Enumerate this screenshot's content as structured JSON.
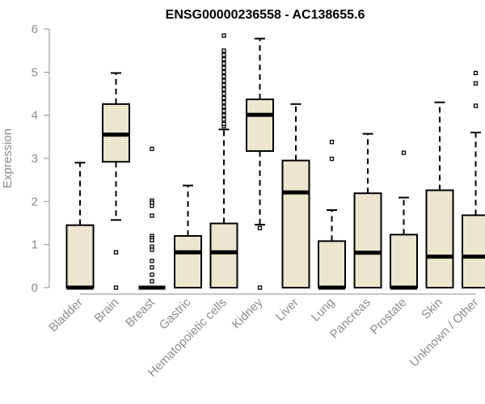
{
  "chart_data": {
    "type": "boxplot",
    "title": "ENSG00000236558 - AC138655.6",
    "xlabel": "",
    "ylabel": "Expression",
    "ylim": [
      0,
      6
    ],
    "yticks": [
      "0",
      "1",
      "2",
      "3",
      "4",
      "5",
      "6"
    ],
    "grid": false,
    "colors": {
      "box_fill": "#ece6cf",
      "line": "#000000",
      "axis": "#8c8c8c"
    },
    "categories": [
      "Bladder",
      "Brain",
      "Breast",
      "Gastric",
      "Hematopoietic cells",
      "Kidney",
      "Liver",
      "Lung",
      "Pancreas",
      "Prostate",
      "Skin",
      "Unknown / Other"
    ],
    "boxes": [
      {
        "category": "Bladder",
        "min": 0,
        "q1": 0,
        "median": 0,
        "q3": 1.45,
        "max": 2.9,
        "outliers": []
      },
      {
        "category": "Brain",
        "min": 1.57,
        "q1": 2.92,
        "median": 3.55,
        "q3": 4.26,
        "max": 4.98,
        "outliers": [
          0.82,
          0
        ]
      },
      {
        "category": "Breast",
        "min": 0,
        "q1": 0,
        "median": 0,
        "q3": 0,
        "max": 0,
        "outliers": [
          3.22,
          2.02,
          1.97,
          1.9,
          1.67,
          1.2,
          1.15,
          1.1,
          0.95,
          0.88,
          0.62,
          0.47,
          0.3,
          0.15
        ]
      },
      {
        "category": "Gastric",
        "min": 0,
        "q1": 0,
        "median": 0.82,
        "q3": 1.2,
        "max": 2.37,
        "outliers": []
      },
      {
        "category": "Hematopoietic cells",
        "min": 0,
        "q1": 0,
        "median": 0.82,
        "q3": 1.49,
        "max": 3.67,
        "outliers": [
          3.75,
          3.8,
          3.9,
          4.0,
          4.1,
          4.2,
          4.3,
          4.4,
          4.5,
          4.6,
          4.7,
          4.8,
          4.9,
          5.0,
          5.1,
          5.2,
          5.3,
          5.4,
          5.5,
          5.85
        ]
      },
      {
        "category": "Kidney",
        "min": 1.46,
        "q1": 3.17,
        "median": 4.01,
        "q3": 4.37,
        "max": 5.78,
        "outliers": [
          1.38,
          0
        ]
      },
      {
        "category": "Liver",
        "min": 0,
        "q1": 0,
        "median": 2.21,
        "q3": 2.95,
        "max": 4.26,
        "outliers": []
      },
      {
        "category": "Lung",
        "min": 0,
        "q1": 0,
        "median": 0,
        "q3": 1.08,
        "max": 1.8,
        "outliers": [
          3.38,
          2.99
        ]
      },
      {
        "category": "Pancreas",
        "min": 0,
        "q1": 0,
        "median": 0.81,
        "q3": 2.19,
        "max": 3.57,
        "outliers": []
      },
      {
        "category": "Prostate",
        "min": 0,
        "q1": 0,
        "median": 0,
        "q3": 1.23,
        "max": 2.09,
        "outliers": [
          3.13
        ]
      },
      {
        "category": "Skin",
        "min": 0,
        "q1": 0,
        "median": 0.72,
        "q3": 2.26,
        "max": 4.3,
        "outliers": []
      },
      {
        "category": "Unknown / Other",
        "min": 0,
        "q1": 0,
        "median": 0.72,
        "q3": 1.68,
        "max": 3.6,
        "outliers": [
          4.98,
          4.74,
          4.22
        ]
      }
    ]
  }
}
